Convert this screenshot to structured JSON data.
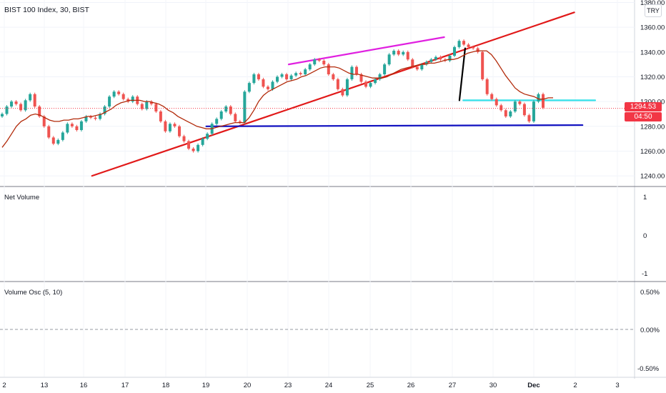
{
  "header": {
    "title": "BIST 100 Index, 30, BIST",
    "currency": "TRY"
  },
  "price_tags": {
    "last_price": "1294.53",
    "countdown": "04:50"
  },
  "panes": {
    "volume": {
      "title": "Net Volume",
      "ticks": [
        "1",
        "0",
        "-1"
      ]
    },
    "osc": {
      "title": "Volume Osc (5, 10)",
      "ticks": [
        "0.50%",
        "0.00%",
        "-0.50%"
      ]
    }
  },
  "colors": {
    "up": "#26a69a",
    "down": "#ef5350",
    "ma": "#b22a0a",
    "trend_red": "#e11919",
    "trend_magenta": "#e020e0",
    "support_blue": "#1010c0",
    "neckline_cyan": "#34e0e8",
    "drop_black": "#000000",
    "price_tag": "#f23645"
  },
  "chart_data": {
    "type": "line",
    "title": "BIST 100 Index, 30, BIST",
    "y_ticks": [
      "1380.00",
      "1360.00",
      "1340.00",
      "1320.00",
      "1300.00",
      "1280.00",
      "1260.00",
      "1240.00"
    ],
    "ylim": [
      1232,
      1382
    ],
    "x_ticks": [
      "2",
      "13",
      "16",
      "17",
      "18",
      "19",
      "20",
      "23",
      "24",
      "25",
      "26",
      "27",
      "30",
      "Dec",
      "2",
      "3"
    ],
    "close_series": [
      1290,
      1296,
      1300,
      1298,
      1293,
      1301,
      1306,
      1296,
      1288,
      1280,
      1271,
      1266,
      1269,
      1275,
      1282,
      1280,
      1277,
      1284,
      1288,
      1287,
      1286,
      1290,
      1296,
      1304,
      1308,
      1306,
      1302,
      1300,
      1304,
      1298,
      1294,
      1300,
      1298,
      1292,
      1284,
      1276,
      1282,
      1280,
      1272,
      1268,
      1262,
      1260,
      1265,
      1270,
      1274,
      1282,
      1286,
      1292,
      1296,
      1290,
      1284,
      1283,
      1308,
      1315,
      1322,
      1318,
      1312,
      1310,
      1316,
      1320,
      1322,
      1318,
      1321,
      1323,
      1322,
      1326,
      1330,
      1334,
      1333,
      1330,
      1322,
      1318,
      1310,
      1305,
      1318,
      1328,
      1322,
      1316,
      1312,
      1315,
      1318,
      1322,
      1330,
      1338,
      1341,
      1338,
      1340,
      1334,
      1328,
      1326,
      1330,
      1332,
      1334,
      1336,
      1334,
      1333,
      1337,
      1344,
      1349,
      1346,
      1344,
      1343,
      1340,
      1318,
      1306,
      1302,
      1297,
      1293,
      1288,
      1292,
      1300,
      1298,
      1289,
      1284,
      1300,
      1306,
      1295
    ],
    "ma_series": [
      1263,
      1268,
      1274,
      1280,
      1284,
      1286,
      1289,
      1290,
      1289,
      1287,
      1285,
      1284,
      1284,
      1285,
      1285,
      1286,
      1286,
      1287,
      1288,
      1288,
      1289,
      1290,
      1292,
      1294,
      1297,
      1299,
      1300,
      1301,
      1301,
      1301,
      1300,
      1300,
      1299,
      1298,
      1296,
      1293,
      1291,
      1288,
      1286,
      1284,
      1282,
      1280,
      1279,
      1278,
      1278,
      1279,
      1280,
      1281,
      1282,
      1283,
      1283,
      1283,
      1287,
      1293,
      1300,
      1305,
      1308,
      1310,
      1312,
      1314,
      1316,
      1317,
      1318,
      1320,
      1321,
      1323,
      1325,
      1327,
      1328,
      1328,
      1328,
      1327,
      1325,
      1323,
      1322,
      1322,
      1321,
      1320,
      1319,
      1319,
      1319,
      1320,
      1322,
      1324,
      1326,
      1327,
      1328,
      1329,
      1330,
      1330,
      1331,
      1331,
      1332,
      1333,
      1334,
      1334,
      1335,
      1337,
      1339,
      1340,
      1341,
      1341,
      1341,
      1338,
      1333,
      1327,
      1321,
      1316,
      1311,
      1308,
      1306,
      1305,
      1304,
      1302,
      1302,
      1303,
      1303
    ],
    "drawings": [
      {
        "name": "rising-trendline",
        "color": "#e11919",
        "points": [
          [
            0.145,
            1240
          ],
          [
            0.905,
            1372
          ]
        ]
      },
      {
        "name": "upper-channel-line",
        "color": "#e020e0",
        "points": [
          [
            0.455,
            1330
          ],
          [
            0.7,
            1352
          ]
        ]
      },
      {
        "name": "support-line",
        "color": "#1010c0",
        "points": [
          [
            0.325,
            1280
          ],
          [
            0.918,
            1281
          ]
        ]
      },
      {
        "name": "neckline",
        "color": "#34e0e8",
        "points": [
          [
            0.73,
            1301
          ],
          [
            0.938,
            1301
          ]
        ]
      },
      {
        "name": "breakdown-drop",
        "color": "#000000",
        "points": [
          [
            0.733,
            1343
          ],
          [
            0.724,
            1301
          ]
        ]
      }
    ],
    "last_price": 1294.53,
    "volume_pane": {
      "title": "Net Volume",
      "ylim": [
        -1,
        1
      ]
    },
    "osc_pane": {
      "title": "Volume Osc (5, 10)",
      "ylim": [
        -0.5,
        0.5
      ]
    }
  }
}
